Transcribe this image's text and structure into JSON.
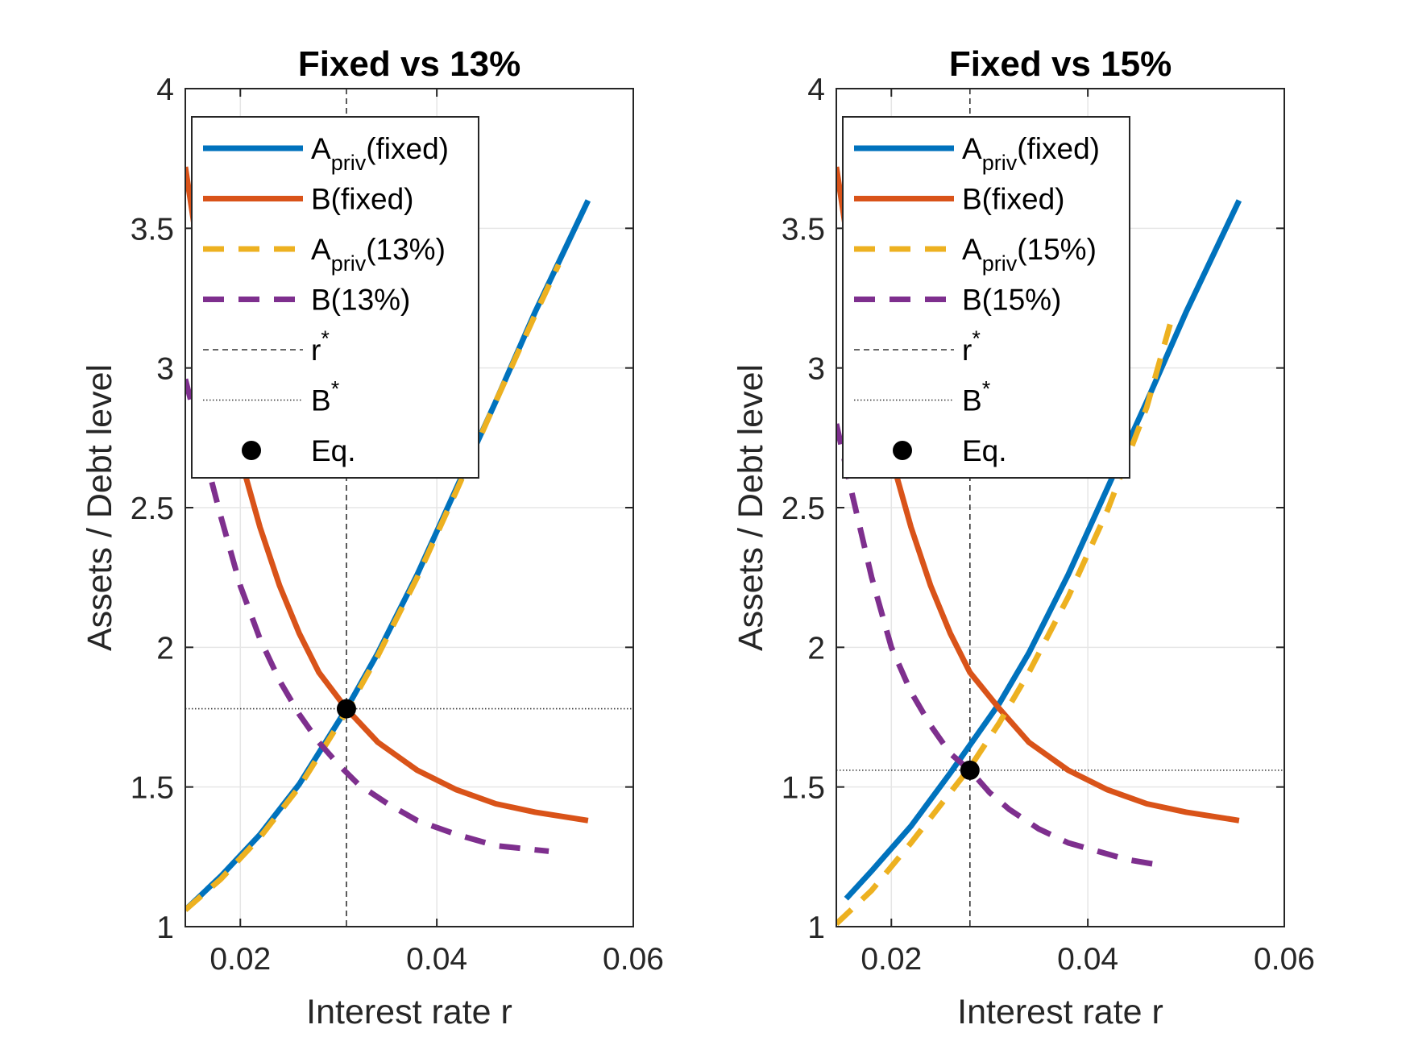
{
  "colors": {
    "fixed_assets": "#0072BD",
    "fixed_debt": "#D95319",
    "alt_assets": "#EDB120",
    "alt_debt": "#7E2F8E",
    "marker": "#000000",
    "axis": "#262626",
    "grid": "#E6E6E6"
  },
  "chart_data": [
    {
      "type": "line",
      "title": "Fixed vs 13%",
      "xlabel": "Interest rate r",
      "ylabel": "Assets / Debt level",
      "xlim": [
        0.0144,
        0.06
      ],
      "ylim": [
        1,
        4
      ],
      "xticks": [
        0.02,
        0.04,
        0.06
      ],
      "xtick_labels": [
        "0.02",
        "0.04",
        "0.06"
      ],
      "yticks": [
        1,
        1.5,
        2,
        2.5,
        3,
        3.5,
        4
      ],
      "ytick_labels": [
        "1",
        "1.5",
        "2",
        "2.5",
        "3",
        "3.5",
        "4"
      ],
      "grid": true,
      "legend_position": "top-left",
      "legend": [
        {
          "text": "A",
          "sub": "priv",
          "suffix": "(fixed)",
          "style": "solid",
          "color_key": "fixed_assets"
        },
        {
          "text": "B(fixed)",
          "style": "solid",
          "color_key": "fixed_debt"
        },
        {
          "text": "A",
          "sub": "priv",
          "suffix": "(13%)",
          "style": "dashed",
          "color_key": "alt_assets"
        },
        {
          "text": "B(13%)",
          "style": "dashed",
          "color_key": "alt_debt"
        },
        {
          "text": "r",
          "sup": "*",
          "style": "ref-dashed"
        },
        {
          "text": "B",
          "sup": "*",
          "style": "ref-dotted"
        },
        {
          "text": "Eq.",
          "style": "marker"
        }
      ],
      "series": [
        {
          "key": "fixed_assets",
          "style": "solid",
          "x": [
            0.0144,
            0.018,
            0.022,
            0.026,
            0.0308,
            0.034,
            0.038,
            0.042,
            0.046,
            0.05,
            0.0554
          ],
          "y": [
            1.06,
            1.18,
            1.33,
            1.51,
            1.78,
            1.98,
            2.26,
            2.57,
            2.88,
            3.2,
            3.6
          ]
        },
        {
          "key": "fixed_debt",
          "style": "solid",
          "x": [
            0.0144,
            0.016,
            0.018,
            0.02,
            0.022,
            0.024,
            0.026,
            0.028,
            0.0308,
            0.034,
            0.038,
            0.042,
            0.046,
            0.05,
            0.0554
          ],
          "y": [
            3.72,
            3.35,
            3.0,
            2.68,
            2.43,
            2.22,
            2.05,
            1.91,
            1.78,
            1.66,
            1.56,
            1.49,
            1.44,
            1.41,
            1.38
          ]
        },
        {
          "key": "alt_assets",
          "style": "dashed",
          "x": [
            0.0144,
            0.018,
            0.022,
            0.026,
            0.0308,
            0.034,
            0.038,
            0.042,
            0.046,
            0.05,
            0.0524
          ],
          "y": [
            1.06,
            1.17,
            1.32,
            1.5,
            1.77,
            1.97,
            2.25,
            2.56,
            2.88,
            3.19,
            3.37
          ]
        },
        {
          "key": "alt_debt",
          "style": "dashed",
          "x": [
            0.0144,
            0.016,
            0.018,
            0.02,
            0.022,
            0.024,
            0.026,
            0.028,
            0.03,
            0.032,
            0.035,
            0.038,
            0.042,
            0.046,
            0.0514
          ],
          "y": [
            2.96,
            2.74,
            2.47,
            2.22,
            2.03,
            1.88,
            1.76,
            1.66,
            1.58,
            1.51,
            1.44,
            1.38,
            1.33,
            1.29,
            1.27
          ]
        }
      ],
      "r_star": 0.0308,
      "b_star": 1.78,
      "equilibrium": {
        "x": 0.0308,
        "y": 1.78
      }
    },
    {
      "type": "line",
      "title": "Fixed vs 15%",
      "xlabel": "Interest rate r",
      "ylabel": "Assets / Debt level",
      "xlim": [
        0.0144,
        0.06
      ],
      "ylim": [
        1,
        4
      ],
      "xticks": [
        0.02,
        0.04,
        0.06
      ],
      "xtick_labels": [
        "0.02",
        "0.04",
        "0.06"
      ],
      "yticks": [
        1,
        1.5,
        2,
        2.5,
        3,
        3.5,
        4
      ],
      "ytick_labels": [
        "1",
        "1.5",
        "2",
        "2.5",
        "3",
        "3.5",
        "4"
      ],
      "grid": true,
      "legend_position": "top-left",
      "legend": [
        {
          "text": "A",
          "sub": "priv",
          "suffix": "(fixed)",
          "style": "solid",
          "color_key": "fixed_assets"
        },
        {
          "text": "B(fixed)",
          "style": "solid",
          "color_key": "fixed_debt"
        },
        {
          "text": "A",
          "sub": "priv",
          "suffix": "(15%)",
          "style": "dashed",
          "color_key": "alt_assets"
        },
        {
          "text": "B(15%)",
          "style": "dashed",
          "color_key": "alt_debt"
        },
        {
          "text": "r",
          "sup": "*",
          "style": "ref-dashed"
        },
        {
          "text": "B",
          "sup": "*",
          "style": "ref-dotted"
        },
        {
          "text": "Eq.",
          "style": "marker"
        }
      ],
      "series": [
        {
          "key": "fixed_assets",
          "style": "solid",
          "x": [
            0.0154,
            0.018,
            0.022,
            0.026,
            0.028,
            0.031,
            0.034,
            0.038,
            0.042,
            0.046,
            0.05,
            0.0554
          ],
          "y": [
            1.1,
            1.2,
            1.36,
            1.55,
            1.65,
            1.8,
            1.98,
            2.26,
            2.57,
            2.88,
            3.2,
            3.6
          ]
        },
        {
          "key": "fixed_debt",
          "style": "solid",
          "x": [
            0.0144,
            0.016,
            0.018,
            0.02,
            0.022,
            0.024,
            0.026,
            0.028,
            0.031,
            0.034,
            0.038,
            0.042,
            0.046,
            0.05,
            0.0554
          ],
          "y": [
            3.72,
            3.35,
            3.0,
            2.68,
            2.43,
            2.22,
            2.05,
            1.91,
            1.78,
            1.66,
            1.56,
            1.49,
            1.44,
            1.41,
            1.38
          ]
        },
        {
          "key": "alt_assets",
          "style": "dashed",
          "x": [
            0.0144,
            0.018,
            0.022,
            0.026,
            0.028,
            0.031,
            0.034,
            0.038,
            0.042,
            0.046,
            0.0484
          ],
          "y": [
            1.01,
            1.13,
            1.3,
            1.48,
            1.57,
            1.73,
            1.91,
            2.18,
            2.49,
            2.86,
            3.16
          ]
        },
        {
          "key": "alt_debt",
          "style": "dashed",
          "x": [
            0.0144,
            0.016,
            0.018,
            0.02,
            0.022,
            0.024,
            0.026,
            0.028,
            0.03,
            0.032,
            0.035,
            0.038,
            0.041,
            0.044,
            0.0474
          ],
          "y": [
            2.8,
            2.55,
            2.25,
            2.0,
            1.84,
            1.72,
            1.62,
            1.56,
            1.48,
            1.42,
            1.35,
            1.3,
            1.27,
            1.24,
            1.22
          ]
        }
      ],
      "r_star": 0.028,
      "b_star": 1.56,
      "equilibrium": {
        "x": 0.028,
        "y": 1.56
      }
    }
  ]
}
